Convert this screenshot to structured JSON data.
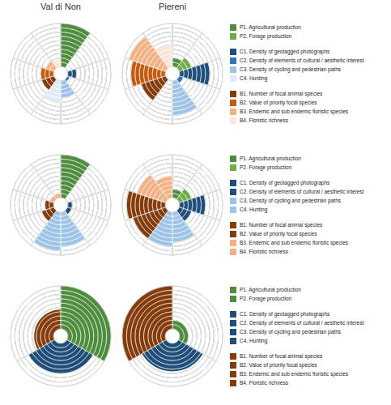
{
  "chart_data": [
    {
      "type": "rose",
      "ylim": [
        0,
        10
      ],
      "yticks": [
        0,
        1,
        2,
        3,
        4,
        5,
        6,
        7,
        8,
        9,
        10
      ],
      "tick_labels": false,
      "categories": [
        "P1. Agricultural production",
        "P2. Forage production",
        "C1. Density of geotagged photographs",
        "C2. Density of elements of cultural / aesthetic interest",
        "C3. Density of cycling and pedestrian paths",
        "C4. Hunting",
        "B1. Number of focal animal species",
        "B2. Value of priority focal species",
        "B3. Endemic and sub endemic floristic species",
        "B4. Floristic richness"
      ],
      "colors": [
        "#4e8c3e",
        "#70ad47",
        "#1f4e79",
        "#2e75b6",
        "#9dc3e6",
        "#deebf7",
        "#843c0c",
        "#c55a11",
        "#f4b183",
        "#fbe5d6"
      ],
      "panels": [
        {
          "title": "Val di Non",
          "values": [
            10,
            0,
            2,
            0.5,
            4,
            5,
            3,
            3,
            2,
            1.5
          ]
        },
        {
          "title": "Piereni",
          "values": [
            2,
            3,
            7,
            1,
            8,
            0,
            6,
            8,
            9,
            5
          ]
        }
      ]
    },
    {
      "type": "rose",
      "ylim": [
        0,
        10
      ],
      "yticks": [
        0,
        1,
        2,
        3,
        4,
        5,
        6,
        7,
        8,
        9,
        10
      ],
      "tick_labels": false,
      "categories": [
        "P1. Agricultural production",
        "P2. Forage production",
        "C1. Density of geotagged photographs",
        "C2. Density of elements of cultural / aesthetic interest",
        "C3. Density of cycling and pedestrian paths",
        "C4. Hunting",
        "B1. Number of focal animal species",
        "B2. Value of priority focal species",
        "B3. Endemic and sub endemic floristic species",
        "B4. Floristic richness"
      ],
      "colors": [
        "#4e8c3e",
        "#70ad47",
        "#1f4e79",
        "#1f4e79",
        "#9dc3e6",
        "#9dc3e6",
        "#843c0c",
        "#843c0c",
        "#f4b183",
        "#f4b183"
      ],
      "panels": [
        {
          "values": [
            10,
            0,
            1,
            1,
            8,
            9,
            3,
            2,
            1,
            1
          ]
        },
        {
          "values": [
            2,
            3,
            6,
            3,
            7,
            8,
            8,
            9,
            7,
            5
          ]
        }
      ]
    },
    {
      "type": "rose",
      "ylim": [
        0,
        10
      ],
      "yticks": [
        0,
        1,
        2,
        3,
        4,
        5,
        6,
        7,
        8,
        9,
        10
      ],
      "tick_labels": false,
      "groups": [
        {
          "labels": [
            "P1. Agricultural production",
            "P2. Forage production"
          ],
          "color": "#4e8c3e"
        },
        {
          "labels": [
            "C1. Density of geotagged photographs",
            "C2. Density of elements of cultural / aesthetic interest",
            "C3. Density of cycling and pedestrian paths",
            "C4. Hunting"
          ],
          "color": "#1f4e79"
        },
        {
          "labels": [
            "B1. Number of focal animal species",
            "B2. Value of priority focal species",
            "B3. Endemic and sub endemic floristic species",
            "B4. Floristic richness"
          ],
          "color": "#843c0c"
        }
      ],
      "panels": [
        {
          "values": [
            10,
            7,
            4.5
          ]
        },
        {
          "values": [
            2,
            6.5,
            10
          ]
        }
      ]
    }
  ]
}
